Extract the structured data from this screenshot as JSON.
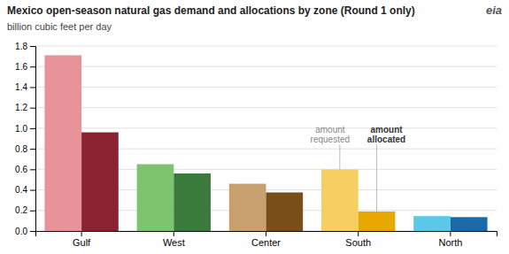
{
  "chart_data": {
    "type": "bar",
    "title": "Mexico open-season natural gas demand and allocations by zone (Round 1 only)",
    "ylabel": "billion cubic feet per day",
    "categories": [
      "Gulf",
      "West",
      "Center",
      "South",
      "North"
    ],
    "series": [
      {
        "values": [
          1.71,
          0.65,
          0.46,
          0.6,
          0.145
        ],
        "colors": [
          "#e8929a",
          "#7dc46e",
          "#c8a070",
          "#f5d060",
          "#5bc8e8"
        ]
      },
      {
        "values": [
          0.96,
          0.56,
          0.375,
          0.19,
          0.135
        ],
        "colors": [
          "#8b2230",
          "#3a7a3a",
          "#7a4e18",
          "#e8a800",
          "#1a6aaa"
        ]
      }
    ],
    "ylim": [
      0,
      1.8
    ],
    "yticks": [
      {
        "value": 0,
        "label": "0.0"
      },
      {
        "value": 0.2,
        "label": "0.2"
      },
      {
        "value": 0.4,
        "label": "0.4"
      },
      {
        "value": 0.6,
        "label": "0.6"
      },
      {
        "value": 0.8,
        "label": "0.8"
      },
      {
        "value": 1,
        "label": "1.0"
      },
      {
        "value": 1.2,
        "label": "1.2"
      },
      {
        "value": 1.4,
        "label": "1.4"
      },
      {
        "value": 1.6,
        "label": "1.6"
      },
      {
        "value": 1.8,
        "label": "1.8"
      }
    ],
    "grid": true,
    "annotations": [
      {
        "text": "amount\nrequested",
        "category": "South",
        "series": 0
      },
      {
        "text": "amount\nallocated",
        "category": "South",
        "series": 1
      },
      {
        "text": "eia"
      }
    ]
  }
}
